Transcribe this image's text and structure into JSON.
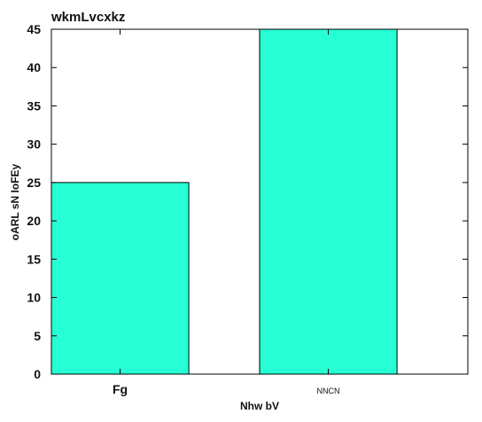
{
  "chart_data": {
    "type": "bar",
    "title": "wkmLvcxkz",
    "xlabel": "Nhw bV",
    "ylabel": "oARL sN IoFEy",
    "categories": [
      "Fg",
      "NNCN"
    ],
    "values": [
      25,
      45
    ],
    "ylim": [
      0,
      45
    ],
    "yticks": [
      "0",
      "5",
      "10",
      "15",
      "20",
      "25",
      "30",
      "35",
      "40",
      "45"
    ],
    "bar_color": "#26ffd4",
    "edge_color": "#000000",
    "grid": false,
    "legend": "none"
  }
}
